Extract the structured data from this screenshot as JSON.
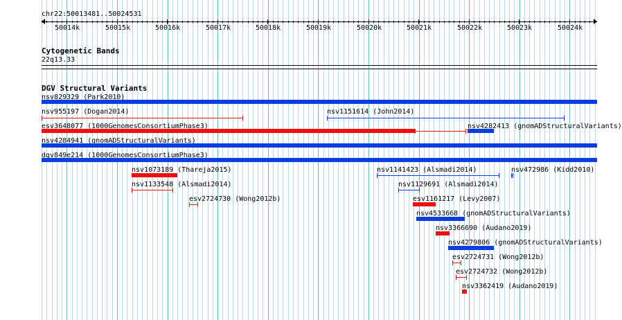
{
  "ruler": {
    "locus": "chr22:50013481..50024531",
    "ticks": [
      {
        "label": "50014k"
      },
      {
        "label": "50015k"
      },
      {
        "label": "50016k"
      },
      {
        "label": "50017k"
      },
      {
        "label": "50018k"
      },
      {
        "label": "50019k"
      },
      {
        "label": "50020k"
      },
      {
        "label": "50021k"
      },
      {
        "label": "50022k"
      },
      {
        "label": "50023k"
      },
      {
        "label": "50024k"
      }
    ]
  },
  "cytobands": {
    "title": "Cytogenetic Bands",
    "band": "22q13.33"
  },
  "dgv": {
    "title": "DGV Structural Variants",
    "colors": {
      "gain": "#0a3ee0",
      "loss": "#f01010"
    },
    "features": [
      {
        "label": "nsv829329 (Park2010)",
        "type": "gain"
      },
      {
        "label": "nsv955197 (Dogan2014)",
        "type": "loss"
      },
      {
        "label": "nsv1151614 (John2014)",
        "type": "gain"
      },
      {
        "label": "esv3648077 (1000GenomesConsortiumPhase3)",
        "type": "loss"
      },
      {
        "label": "nsv4282413 (gnomADStructuralVariants)",
        "type": "gain"
      },
      {
        "label": "nsv4284941 (gnomADStructuralVariants)",
        "type": "gain"
      },
      {
        "label": "dgv849e214 (1000GenomesConsortiumPhase3)",
        "type": "gain"
      },
      {
        "label": "nsv1073189 (Thareja2015)",
        "type": "loss"
      },
      {
        "label": "nsv1141423 (Alsmadi2014)",
        "type": "gain"
      },
      {
        "label": "nsv472986 (Kidd2010)",
        "type": "gain"
      },
      {
        "label": "nsv1133548 (Alsmadi2014)",
        "type": "loss"
      },
      {
        "label": "nsv1129691 (Alsmadi2014)",
        "type": "gain"
      },
      {
        "label": "esv2724730 (Wong2012b)",
        "type": "loss"
      },
      {
        "label": "esv1161217 (Levy2007)",
        "type": "loss"
      },
      {
        "label": "nsv4533668 (gnomADStructuralVariants)",
        "type": "gain"
      },
      {
        "label": "nsv3366690 (Audano2019)",
        "type": "loss"
      },
      {
        "label": "nsv4279806 (gnomADStructuralVariants)",
        "type": "gain"
      },
      {
        "label": "esv2724731 (Wong2012b)",
        "type": "loss"
      },
      {
        "label": "esv2724732 (Wong2012b)",
        "type": "loss"
      },
      {
        "label": "nsv3362419 (Audano2019)",
        "type": "loss"
      }
    ]
  }
}
